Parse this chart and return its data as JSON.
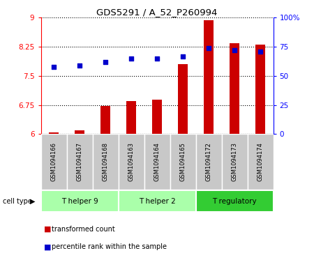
{
  "title": "GDS5291 / A_52_P260994",
  "samples": [
    "GSM1094166",
    "GSM1094167",
    "GSM1094168",
    "GSM1094163",
    "GSM1094164",
    "GSM1094165",
    "GSM1094172",
    "GSM1094173",
    "GSM1094174"
  ],
  "transformed_counts": [
    6.05,
    6.1,
    6.72,
    6.85,
    6.88,
    7.8,
    8.93,
    8.35,
    8.3
  ],
  "percentile_ranks": [
    58,
    59,
    62,
    65,
    65,
    67,
    74,
    72,
    71
  ],
  "ylim_left": [
    6,
    9
  ],
  "ylim_right": [
    0,
    100
  ],
  "yticks_left": [
    6,
    6.75,
    7.5,
    8.25,
    9
  ],
  "yticks_right": [
    0,
    25,
    50,
    75,
    100
  ],
  "ytick_labels_left": [
    "6",
    "6.75",
    "7.5",
    "8.25",
    "9"
  ],
  "ytick_labels_right": [
    "0",
    "25",
    "50",
    "75",
    "100%"
  ],
  "groups": [
    {
      "label": "T helper 9",
      "indices": [
        0,
        1,
        2
      ],
      "color": "#aaffaa"
    },
    {
      "label": "T helper 2",
      "indices": [
        3,
        4,
        5
      ],
      "color": "#aaffaa"
    },
    {
      "label": "T regulatory",
      "indices": [
        6,
        7,
        8
      ],
      "color": "#33cc33"
    }
  ],
  "bar_color": "#CC0000",
  "dot_color": "#0000CC",
  "bar_width": 0.4,
  "sample_bg_color": "#C8C8C8",
  "sample_sep_color": "#FFFFFF",
  "legend_labels": [
    "transformed count",
    "percentile rank within the sample"
  ]
}
